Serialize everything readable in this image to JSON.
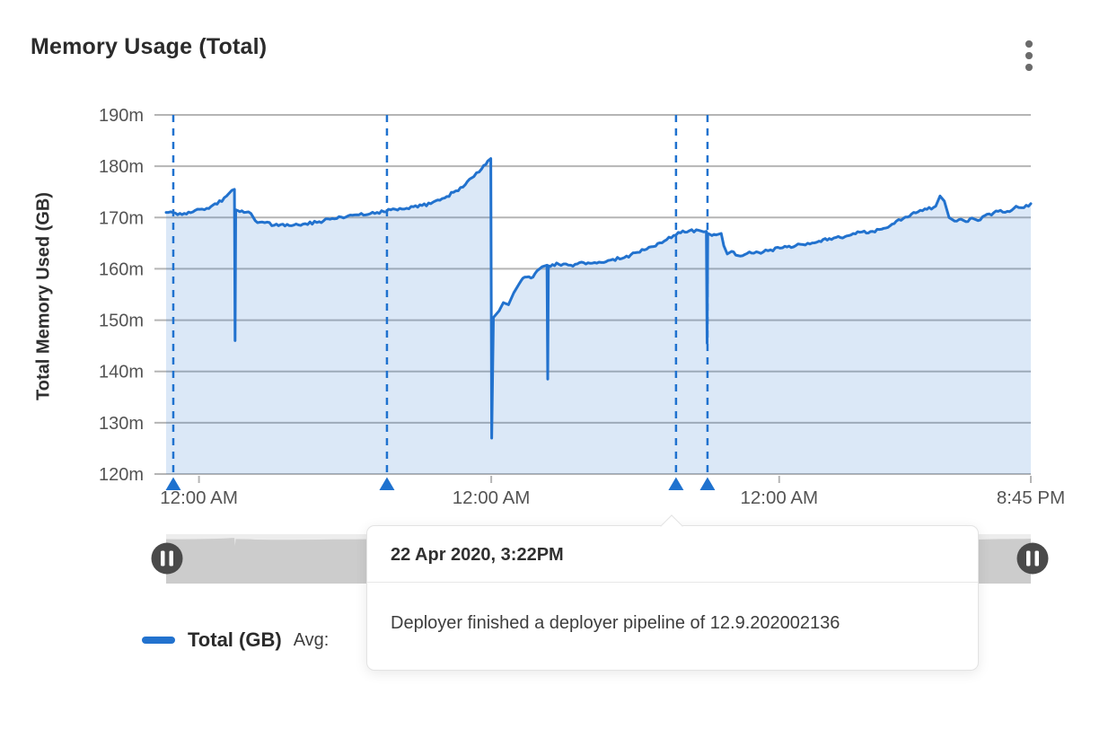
{
  "header": {
    "title": "Memory Usage (Total)"
  },
  "chart_data": {
    "type": "area",
    "title": "Memory Usage (Total)",
    "xlabel": "",
    "ylabel": "Total Memory Used (GB)",
    "ylim": [
      120,
      190
    ],
    "yticks": [
      "190m",
      "180m",
      "170m",
      "160m",
      "150m",
      "140m",
      "130m",
      "120m"
    ],
    "xticks": [
      {
        "label": "12:00 AM",
        "pos": 0.038
      },
      {
        "label": "12:00 AM",
        "pos": 0.376
      },
      {
        "label": "12:00 AM",
        "pos": 0.709
      },
      {
        "label": "8:45 PM",
        "pos": 1.0
      }
    ],
    "grid": true,
    "legend_position": "bottom-left",
    "series": [
      {
        "name": "Total (GB)",
        "unit": "m",
        "points": [
          [
            0,
            171
          ],
          [
            0.016,
            170.8
          ],
          [
            0.031,
            171.1
          ],
          [
            0.047,
            171.8
          ],
          [
            0.059,
            172.6
          ],
          [
            0.07,
            174.2
          ],
          [
            0.076,
            175.3
          ],
          [
            0.079,
            175.5
          ],
          [
            0.0797,
            146
          ],
          [
            0.0805,
            171.5
          ],
          [
            0.09,
            171
          ],
          [
            0.098,
            170.8
          ],
          [
            0.103,
            169.4
          ],
          [
            0.114,
            169
          ],
          [
            0.125,
            168.5
          ],
          [
            0.135,
            168.7
          ],
          [
            0.145,
            168.4
          ],
          [
            0.161,
            168.8
          ],
          [
            0.177,
            169.2
          ],
          [
            0.192,
            169.8
          ],
          [
            0.208,
            170.1
          ],
          [
            0.223,
            170.5
          ],
          [
            0.244,
            171
          ],
          [
            0.265,
            171.6
          ],
          [
            0.286,
            172.1
          ],
          [
            0.306,
            172.7
          ],
          [
            0.322,
            173.8
          ],
          [
            0.335,
            175.2
          ],
          [
            0.346,
            176.4
          ],
          [
            0.356,
            178
          ],
          [
            0.365,
            179.5
          ],
          [
            0.372,
            181
          ],
          [
            0.3755,
            181.5
          ],
          [
            0.3765,
            127
          ],
          [
            0.3785,
            150.5
          ],
          [
            0.385,
            151.8
          ],
          [
            0.39,
            153.4
          ],
          [
            0.396,
            153
          ],
          [
            0.402,
            155.3
          ],
          [
            0.408,
            157
          ],
          [
            0.415,
            158.4
          ],
          [
            0.422,
            158.2
          ],
          [
            0.429,
            159.6
          ],
          [
            0.435,
            160.4
          ],
          [
            0.4405,
            160.7
          ],
          [
            0.4413,
            138.5
          ],
          [
            0.4421,
            160.6
          ],
          [
            0.454,
            160.9
          ],
          [
            0.468,
            160.7
          ],
          [
            0.483,
            161.2
          ],
          [
            0.498,
            161.1
          ],
          [
            0.514,
            161.7
          ],
          [
            0.53,
            162.2
          ],
          [
            0.545,
            163.2
          ],
          [
            0.561,
            164.3
          ],
          [
            0.576,
            165.4
          ],
          [
            0.587,
            166.5
          ],
          [
            0.595,
            167
          ],
          [
            0.605,
            167.4
          ],
          [
            0.616,
            167.5
          ],
          [
            0.622,
            167.2
          ],
          [
            0.6248,
            167.3
          ],
          [
            0.6256,
            145.5
          ],
          [
            0.6264,
            166.9
          ],
          [
            0.636,
            166.6
          ],
          [
            0.642,
            166.9
          ],
          [
            0.645,
            164.5
          ],
          [
            0.649,
            162.9
          ],
          [
            0.654,
            163.4
          ],
          [
            0.661,
            162.6
          ],
          [
            0.672,
            163
          ],
          [
            0.685,
            163.2
          ],
          [
            0.699,
            163.7
          ],
          [
            0.713,
            164.1
          ],
          [
            0.728,
            164.5
          ],
          [
            0.742,
            165
          ],
          [
            0.755,
            165.4
          ],
          [
            0.767,
            165.9
          ],
          [
            0.78,
            166.1
          ],
          [
            0.792,
            166.6
          ],
          [
            0.805,
            167.2
          ],
          [
            0.817,
            167.3
          ],
          [
            0.83,
            167.9
          ],
          [
            0.842,
            168.8
          ],
          [
            0.855,
            170.1
          ],
          [
            0.867,
            170.9
          ],
          [
            0.88,
            171.6
          ],
          [
            0.89,
            172.2
          ],
          [
            0.895,
            174.2
          ],
          [
            0.9,
            173.2
          ],
          [
            0.9055,
            170
          ],
          [
            0.912,
            169.3
          ],
          [
            0.919,
            169.7
          ],
          [
            0.925,
            169.2
          ],
          [
            0.932,
            169.9
          ],
          [
            0.939,
            169.4
          ],
          [
            0.947,
            170.4
          ],
          [
            0.957,
            170.9
          ],
          [
            0.965,
            171.4
          ],
          [
            0.973,
            171.2
          ],
          [
            0.983,
            172.2
          ],
          [
            0.992,
            171.9
          ],
          [
            1,
            172.7
          ]
        ]
      }
    ],
    "annotations": {
      "style": "dashed-vertical-line-with-triangle-marker",
      "positions": [
        0.0083,
        0.2554,
        0.5897,
        0.6261
      ]
    }
  },
  "tooltip": {
    "date": "22 Apr 2020, 3:22PM",
    "text": "Deployer finished a deployer pipeline of 12.9.202002136"
  },
  "legend": {
    "series_label": "Total (GB)",
    "avg_label": "Avg:"
  },
  "colors": {
    "line": "#2272CE",
    "area_fill": "rgba(34,114,206,0.16)",
    "annotation": "#1F72CF",
    "grid": "#b5b5b5",
    "axis_text": "#545454",
    "slider_track": "#ededed",
    "slider_minimap": "#cccccc",
    "slider_handle": "#4a4a4a",
    "kebab_dot": "#6b6b6b"
  }
}
